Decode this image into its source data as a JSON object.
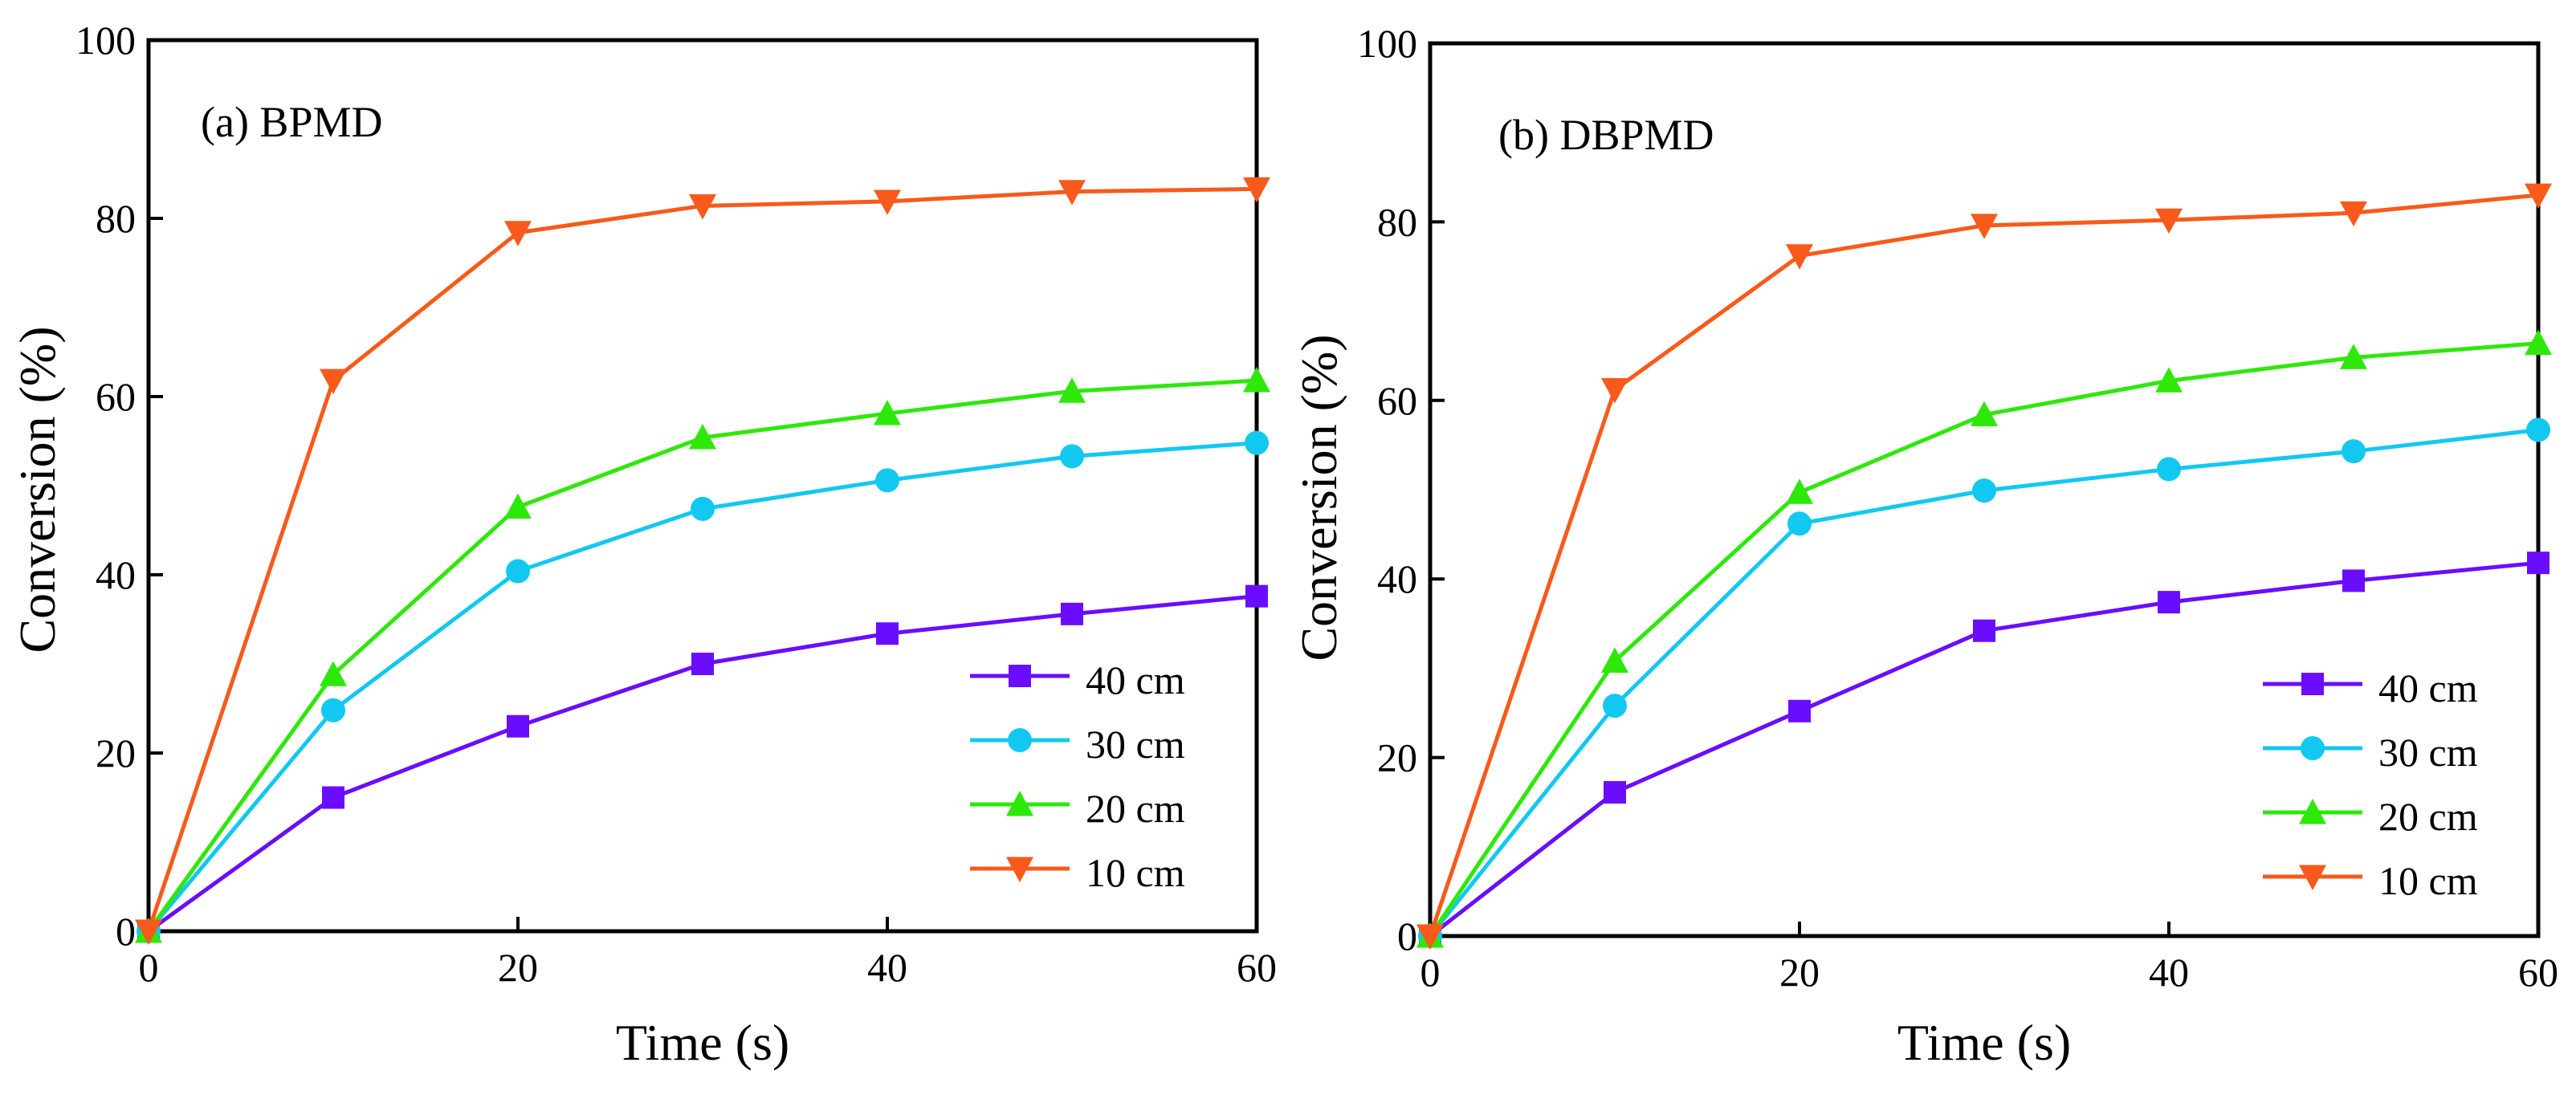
{
  "colors": {
    "axis": "#000000",
    "background": "#ffffff"
  },
  "chart_data": [
    {
      "type": "line",
      "title": "(a) BPMD",
      "xlabel": "Time (s)",
      "ylabel": "Conversion (%)",
      "xlim": [
        0,
        60
      ],
      "ylim": [
        0,
        100
      ],
      "xticks": [
        "0",
        "20",
        "40",
        "60"
      ],
      "yticks": [
        "0",
        "20",
        "40",
        "60",
        "80",
        "100"
      ],
      "x": [
        0,
        10,
        20,
        30,
        40,
        50,
        60
      ],
      "legend_position": "bottom-right",
      "series": [
        {
          "name": "40 cm",
          "color": "#6a0dff",
          "marker": "square",
          "values": [
            0,
            15,
            23,
            30,
            33.4,
            35.6,
            37.6
          ]
        },
        {
          "name": "30 cm",
          "color": "#12c8f0",
          "marker": "circle",
          "values": [
            0,
            24.8,
            40.4,
            47.4,
            50.6,
            53.3,
            54.8
          ]
        },
        {
          "name": "20 cm",
          "color": "#2ee80a",
          "marker": "triangle-up",
          "values": [
            0,
            28.8,
            47.6,
            55.4,
            58.1,
            60.6,
            61.8
          ]
        },
        {
          "name": "10 cm",
          "color": "#f75a1a",
          "marker": "triangle-down",
          "values": [
            0,
            61.8,
            78.4,
            81.4,
            81.9,
            83,
            83.3
          ]
        }
      ]
    },
    {
      "type": "line",
      "title": "(b) DBPMD",
      "xlabel": "Time (s)",
      "ylabel": "Conversion (%)",
      "xlim": [
        0,
        60
      ],
      "ylim": [
        0,
        100
      ],
      "xticks": [
        "0",
        "20",
        "40",
        "60"
      ],
      "yticks": [
        "0",
        "20",
        "40",
        "60",
        "80",
        "100"
      ],
      "x": [
        0,
        10,
        20,
        30,
        40,
        50,
        60
      ],
      "legend_position": "bottom-right",
      "series": [
        {
          "name": "40 cm",
          "color": "#6a0dff",
          "marker": "square",
          "values": [
            0,
            16.1,
            25.2,
            34.2,
            37.4,
            39.8,
            41.8
          ]
        },
        {
          "name": "30 cm",
          "color": "#12c8f0",
          "marker": "circle",
          "values": [
            0,
            25.8,
            46.2,
            49.9,
            52.3,
            54.3,
            56.7
          ]
        },
        {
          "name": "20 cm",
          "color": "#2ee80a",
          "marker": "triangle-up",
          "values": [
            0,
            30.8,
            49.7,
            58.4,
            62.2,
            64.8,
            66.4
          ]
        },
        {
          "name": "10 cm",
          "color": "#f75a1a",
          "marker": "triangle-down",
          "values": [
            0,
            61.2,
            76.2,
            79.6,
            80.2,
            81,
            83
          ]
        }
      ]
    }
  ]
}
